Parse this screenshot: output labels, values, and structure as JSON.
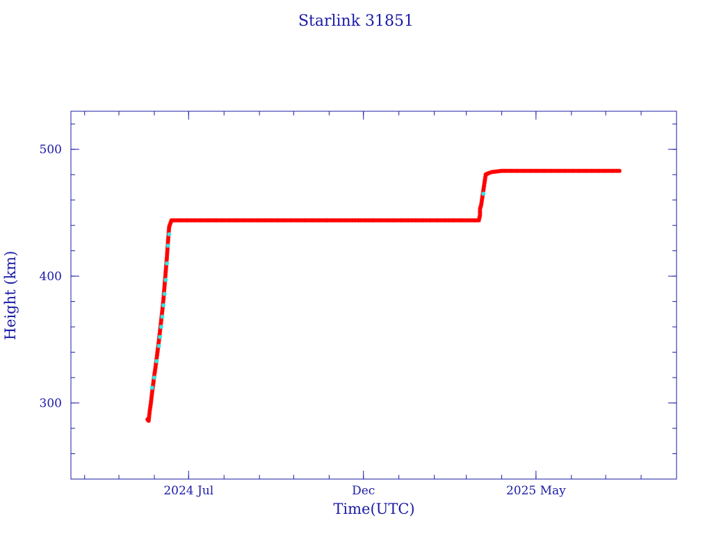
{
  "chart_data": {
    "type": "scatter",
    "title": "Starlink 31851",
    "xlabel": "Time(UTC)",
    "ylabel": "Height (km)",
    "x_tick_labels": [
      "2024 Jul",
      "Dec",
      "2025 May"
    ],
    "y_tick_labels": [
      "300",
      "400",
      "500"
    ],
    "xlim": [
      "2024-03-20",
      "2025-09-01"
    ],
    "ylim": [
      240,
      530
    ],
    "grid": false,
    "colors": {
      "axis": "#1a1aa6",
      "series_main": "#ff0000",
      "series_secondary": "#33e6e6",
      "connector": "#000000"
    },
    "series": [
      {
        "values": [
          [
            "2024-05-26",
            287
          ],
          [
            "2024-05-27",
            286
          ],
          [
            "2024-05-28",
            294
          ],
          [
            "2024-05-29",
            300
          ],
          [
            "2024-05-30",
            308
          ],
          [
            "2024-05-31",
            315
          ],
          [
            "2024-06-01",
            322
          ],
          [
            "2024-06-02",
            328
          ],
          [
            "2024-06-03",
            335
          ],
          [
            "2024-06-04",
            342
          ],
          [
            "2024-06-05",
            349
          ],
          [
            "2024-06-06",
            357
          ],
          [
            "2024-06-07",
            365
          ],
          [
            "2024-06-08",
            373
          ],
          [
            "2024-06-09",
            382
          ],
          [
            "2024-06-10",
            393
          ],
          [
            "2024-06-11",
            404
          ],
          [
            "2024-06-12",
            415
          ],
          [
            "2024-06-13",
            428
          ],
          [
            "2024-06-14",
            439
          ],
          [
            "2024-06-16",
            444
          ],
          [
            "2024-07-01",
            444
          ],
          [
            "2024-08-01",
            444
          ],
          [
            "2024-09-01",
            444
          ],
          [
            "2024-10-01",
            444
          ],
          [
            "2024-11-01",
            444
          ],
          [
            "2024-12-01",
            444
          ],
          [
            "2025-01-01",
            444
          ],
          [
            "2025-02-01",
            444
          ],
          [
            "2025-03-01",
            444
          ],
          [
            "2025-03-12",
            444
          ],
          [
            "2025-03-13",
            448
          ],
          [
            "2025-03-13",
            453
          ],
          [
            "2025-03-14",
            456
          ],
          [
            "2025-03-15",
            462
          ],
          [
            "2025-03-16",
            468
          ],
          [
            "2025-03-17",
            474
          ],
          [
            "2025-03-18",
            480
          ],
          [
            "2025-03-20",
            481
          ],
          [
            "2025-03-23",
            482
          ],
          [
            "2025-04-01",
            483
          ],
          [
            "2025-05-01",
            483
          ],
          [
            "2025-06-01",
            483
          ],
          [
            "2025-07-01",
            483
          ],
          [
            "2025-07-13",
            483
          ]
        ]
      },
      {
        "values": [
          [
            "2024-05-30",
            312
          ],
          [
            "2024-06-01",
            320
          ],
          [
            "2024-06-03",
            333
          ],
          [
            "2024-06-05",
            345
          ],
          [
            "2024-06-06",
            352
          ],
          [
            "2024-06-07",
            360
          ],
          [
            "2024-06-08",
            368
          ],
          [
            "2024-06-09",
            377
          ],
          [
            "2024-06-10",
            386
          ],
          [
            "2024-06-11",
            397
          ],
          [
            "2024-06-12",
            410
          ],
          [
            "2024-06-13",
            424
          ],
          [
            "2024-06-14",
            433
          ],
          [
            "2025-03-16",
            465
          ]
        ]
      }
    ]
  }
}
